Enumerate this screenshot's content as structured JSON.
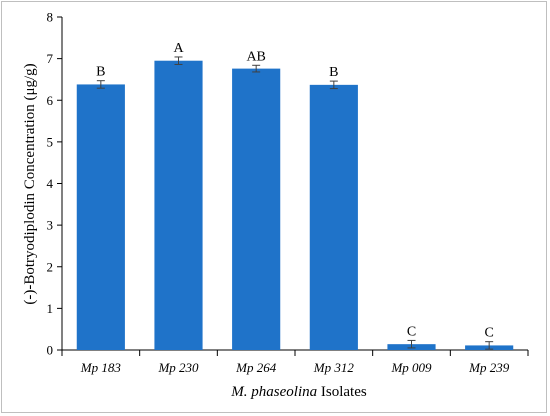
{
  "chart_data": {
    "type": "bar",
    "title": "",
    "xlabel_italic": "M. phaseolina",
    "xlabel_rest": " Isolates",
    "ylabel": "(-)-Botryodiplodin Concentration (μg/g)",
    "ylim": [
      0,
      8
    ],
    "yticks": [
      0,
      1,
      2,
      3,
      4,
      5,
      6,
      7,
      8
    ],
    "categories": [
      "Mp 183",
      "Mp 230",
      "Mp 264",
      "Mp 312",
      "Mp 009",
      "Mp 239"
    ],
    "values": [
      6.38,
      6.95,
      6.76,
      6.37,
      0.14,
      0.11
    ],
    "errors": [
      0.09,
      0.09,
      0.08,
      0.09,
      0.09,
      0.09
    ],
    "significance_labels": [
      "B",
      "A",
      "AB",
      "B",
      "C",
      "C"
    ],
    "bar_color": "#1f73c9",
    "grid": false,
    "legend": "none"
  }
}
